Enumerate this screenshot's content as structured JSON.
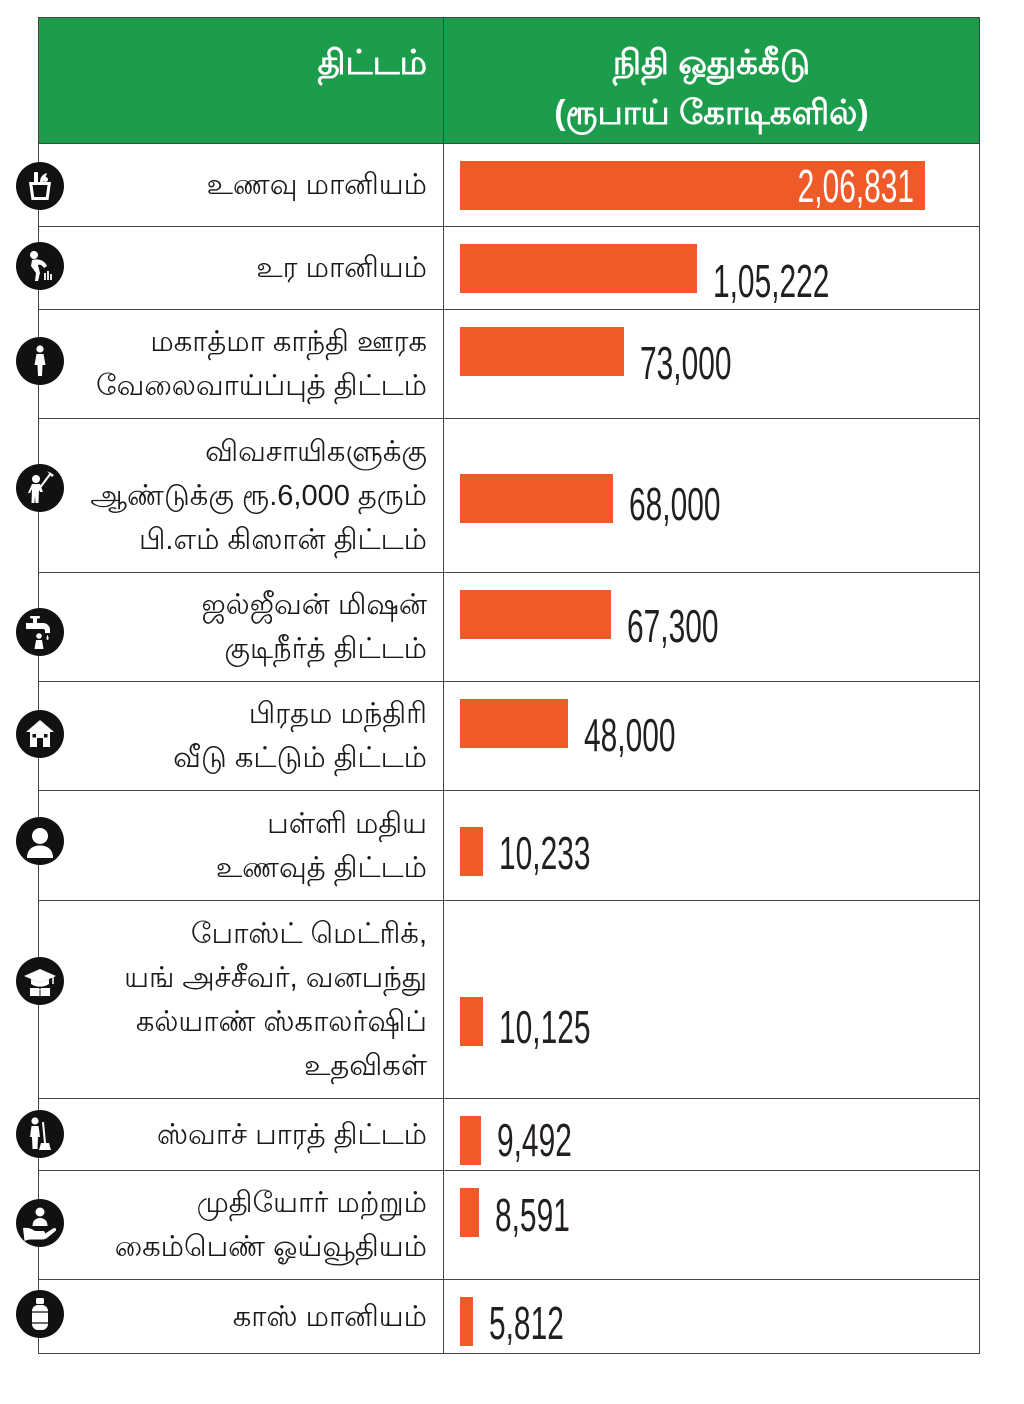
{
  "header": {
    "scheme": "திட்டம்",
    "allocation_title": "நிதி ஒதுக்கீடு",
    "allocation_unit": "(ரூபாய் கோடிகளில்)"
  },
  "colors": {
    "header_background": "#1c9d4b",
    "header_text": "#ffffff",
    "bar": "#f05a28",
    "icon_background": "#111111",
    "grid_line": "#444444",
    "text": "#1a1a1a",
    "value_text": "#231f20"
  },
  "chart_data": {
    "type": "bar",
    "orientation": "horizontal",
    "categories": [
      "உணவு மானியம்",
      "உர மானியம்",
      "மகாத்மா காந்தி ஊரக\nவேலைவாய்ப்புத் திட்டம்",
      "விவசாயிகளுக்கு\nஆண்டுக்கு ரூ.6,000 தரும்\nபி.எம் கிஸான் திட்டம்",
      "ஜல்ஜீவன் மிஷன்\nகுடிநீர்த் திட்டம்",
      "பிரதம மந்திரி\nவீடு கட்டும் திட்டம்",
      "பள்ளி மதிய\nஉணவுத் திட்டம்",
      "போஸ்ட் மெட்ரிக்,\nயங் அச்சீவர், வனபந்து\nகல்யாண் ஸ்காலர்ஷிப்\nஉதவிகள்",
      "ஸ்வாச் பாரத் திட்டம்",
      "முதியோர் மற்றும்\nகைம்பெண் ஓய்வூதியம்",
      "காஸ் மானியம்"
    ],
    "values": [
      206831,
      105222,
      73000,
      68000,
      67300,
      48000,
      10233,
      10125,
      9492,
      8591,
      5812
    ],
    "value_labels": [
      "2,06,831",
      "1,05,222",
      "73,000",
      "68,000",
      "67,300",
      "48,000",
      "10,233",
      "10,125",
      "9,492",
      "8,591",
      "5,812"
    ],
    "category_icons": [
      "grocery-bag-icon",
      "farmer-bending-icon",
      "woman-worker-icon",
      "farmer-hoe-icon",
      "water-tap-icon",
      "house-icon",
      "child-icon",
      "graduation-cap-icon",
      "sweeper-icon",
      "pension-hand-icon",
      "gas-cylinder-icon"
    ],
    "legend": false,
    "grid": false
  }
}
